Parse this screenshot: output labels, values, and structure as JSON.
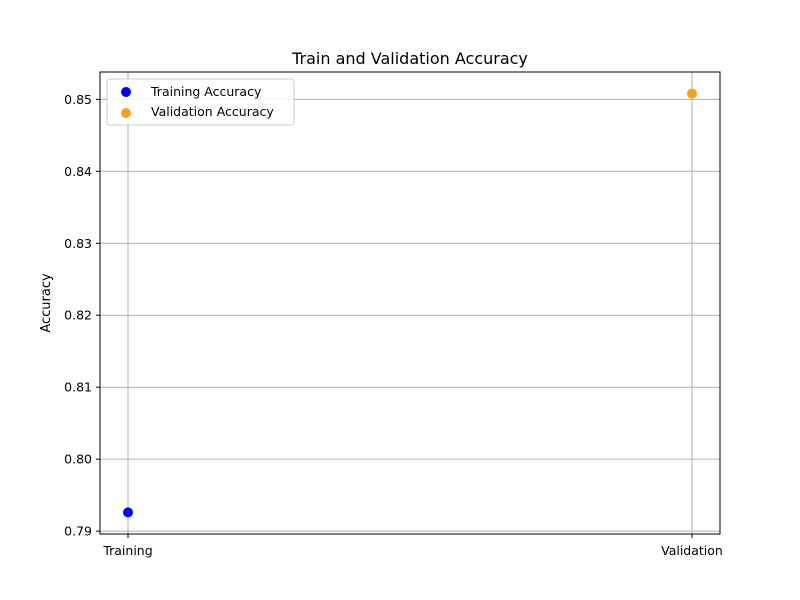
{
  "chart_data": {
    "type": "scatter",
    "title": "Train and Validation Accuracy",
    "xlabel": "",
    "ylabel": "Accuracy",
    "categories": [
      "Training",
      "Validation"
    ],
    "ylim": [
      0.7896,
      0.8538
    ],
    "yticks": [
      "0.79",
      "0.80",
      "0.81",
      "0.82",
      "0.83",
      "0.84",
      "0.85"
    ],
    "grid": true,
    "legend_position": "top-left",
    "series": [
      {
        "name": "Training Accuracy",
        "category": "Training",
        "value": 0.7926,
        "color": "#0000ff"
      },
      {
        "name": "Validation Accuracy",
        "category": "Validation",
        "value": 0.8508,
        "color": "#f5a11e"
      }
    ]
  }
}
